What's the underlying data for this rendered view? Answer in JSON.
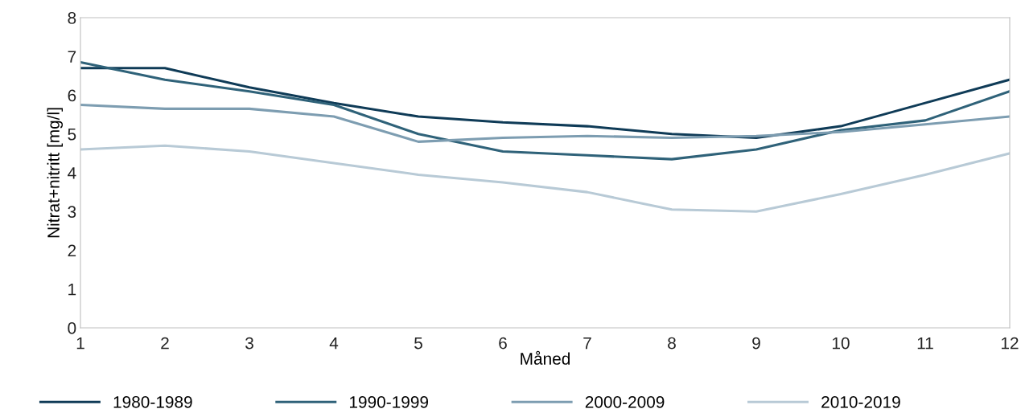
{
  "chart_data": {
    "type": "line",
    "xlabel": "Måned",
    "ylabel": "Nitrat+nitritt [mg/l]",
    "x": [
      1,
      2,
      3,
      4,
      5,
      6,
      7,
      8,
      9,
      10,
      11,
      12
    ],
    "xlim": [
      1,
      12
    ],
    "xticks": [
      1,
      2,
      3,
      4,
      5,
      6,
      7,
      8,
      9,
      10,
      11,
      12
    ],
    "ylim": [
      0,
      8
    ],
    "yticks": [
      0,
      1,
      2,
      3,
      4,
      5,
      6,
      7,
      8
    ],
    "grid": false,
    "legend": "bottom",
    "marker": "none",
    "line_style": "solid",
    "series": [
      {
        "name": "1980-1989",
        "color": "#0f3b57",
        "values": [
          6.7,
          6.7,
          6.2,
          5.8,
          5.45,
          5.3,
          5.2,
          5.0,
          4.9,
          5.2,
          5.8,
          6.4
        ]
      },
      {
        "name": "1990-1999",
        "color": "#2f6279",
        "values": [
          6.85,
          6.4,
          6.1,
          5.75,
          5.0,
          4.55,
          4.45,
          4.35,
          4.6,
          5.1,
          5.35,
          6.1
        ]
      },
      {
        "name": "2000-2009",
        "color": "#7d9db1",
        "values": [
          5.75,
          5.65,
          5.65,
          5.45,
          4.8,
          4.9,
          4.95,
          4.9,
          4.95,
          5.05,
          5.25,
          5.45
        ]
      },
      {
        "name": "2010-2019",
        "color": "#b8cad6",
        "values": [
          4.6,
          4.7,
          4.55,
          4.25,
          3.95,
          3.75,
          3.5,
          3.05,
          3.0,
          3.45,
          3.95,
          4.5
        ]
      }
    ]
  }
}
